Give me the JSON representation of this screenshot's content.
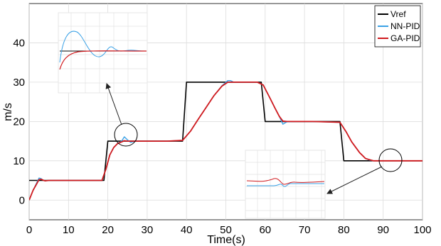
{
  "chart_data": {
    "type": "line",
    "xlabel": "Time(s)",
    "ylabel": "m/s",
    "xlim": [
      0,
      100
    ],
    "ylim": [
      -5,
      50
    ],
    "xticks": [
      0,
      10,
      20,
      30,
      40,
      50,
      60,
      70,
      80,
      90,
      100
    ],
    "yticks": [
      0,
      10,
      20,
      30,
      40
    ],
    "grid": true,
    "legend_position": "top-right",
    "series": [
      {
        "name": "Vref",
        "color": "#000000",
        "x": [
          0,
          3,
          3,
          19,
          20,
          39,
          40,
          59,
          60,
          79,
          80,
          100
        ],
        "y": [
          5,
          5,
          5,
          5,
          15,
          15,
          30,
          30,
          20,
          20,
          10,
          10
        ]
      },
      {
        "name": "NN-PID",
        "color": "#3aa1e6",
        "x": [
          0,
          1,
          2,
          2.5,
          3,
          3.5,
          4,
          5,
          6,
          10,
          15,
          18.5,
          19.5,
          20.5,
          21.5,
          22.5,
          23.5,
          24.2,
          25,
          25.8,
          27,
          30,
          35,
          39,
          41,
          43,
          45,
          47,
          49,
          50.5,
          51.2,
          52,
          53,
          55,
          58,
          59.5,
          61,
          62.5,
          63.6,
          64.5,
          65.5,
          67,
          72,
          79,
          80.5,
          82,
          84,
          85.5,
          86.5,
          87.5,
          90,
          95,
          100
        ],
        "y": [
          0,
          2.5,
          4.6,
          5.6,
          5.5,
          5.1,
          4.9,
          5,
          5,
          5,
          5,
          5,
          7.8,
          11.5,
          13.4,
          14.4,
          15,
          16.1,
          15.3,
          14.7,
          15,
          15,
          15,
          15.2,
          17.5,
          20.6,
          23.6,
          26.6,
          29.1,
          30.4,
          30.4,
          30,
          30,
          30,
          30,
          29.3,
          26.4,
          23.4,
          21.3,
          19.3,
          19.9,
          20,
          20,
          19.8,
          17.5,
          14.8,
          12.1,
          10.6,
          10.2,
          10,
          10,
          10,
          10
        ]
      },
      {
        "name": "GA-PID",
        "color": "#d01a1e",
        "x": [
          0,
          1,
          2,
          2.5,
          3,
          3.5,
          4,
          5,
          6,
          10,
          15,
          18.5,
          19.5,
          20.5,
          21.5,
          22.5,
          23.5,
          24.2,
          25,
          25.8,
          27,
          30,
          35,
          39,
          41,
          43,
          45,
          47,
          49,
          50.5,
          51.2,
          52,
          53,
          55,
          58,
          59.5,
          61,
          62.5,
          63.6,
          64.5,
          65.5,
          67,
          72,
          79,
          80.5,
          82,
          84,
          85.5,
          86.5,
          87.5,
          90,
          95,
          100
        ],
        "y": [
          0,
          2.5,
          4.3,
          5.2,
          5.3,
          5.1,
          4.9,
          5,
          5,
          5,
          5,
          5,
          7.8,
          11.5,
          13.4,
          14.4,
          14.8,
          15.1,
          15,
          15,
          15,
          15,
          15,
          15.2,
          17.5,
          20.6,
          23.6,
          26.6,
          29,
          30,
          30,
          30,
          30,
          30,
          30,
          29.3,
          26.4,
          23.4,
          21.3,
          20.1,
          20,
          20,
          20,
          19.8,
          17.5,
          14.8,
          12.1,
          10.6,
          10.3,
          10,
          10,
          10,
          10
        ]
      }
    ]
  }
}
